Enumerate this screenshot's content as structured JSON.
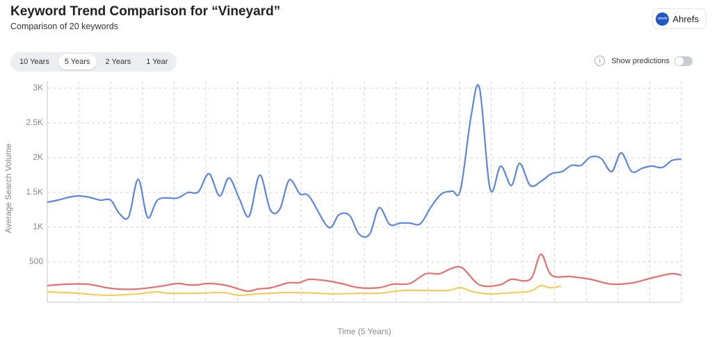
{
  "header": {
    "title": "Keyword Trend Comparison for “Vineyard”",
    "subtitle": "Comparison of 20 keywords"
  },
  "brand": {
    "logo": "ahrefs",
    "name": "Ahrefs"
  },
  "tabs": [
    "10 Years",
    "5 Years",
    "2 Years",
    "1 Year"
  ],
  "active_tab": 1,
  "predictions": {
    "label": "Show predictions",
    "icon": "i",
    "on": false
  },
  "chart_data": {
    "type": "line",
    "x_label": "Time (5 Years)",
    "y_label": "Average Search Volume",
    "xlim": [
      0,
      60
    ],
    "xticks": [
      0,
      3,
      6,
      9,
      12,
      15,
      18,
      21,
      24,
      27,
      30,
      33,
      36,
      39,
      42,
      45,
      48,
      51,
      54,
      57,
      60
    ],
    "ylim": [
      -80,
      3100
    ],
    "yticks": [
      500,
      {
        "value": 1000,
        "label": "1K"
      },
      {
        "value": 1500,
        "label": "1.5K"
      },
      {
        "value": 2000,
        "label": "2K"
      },
      {
        "value": 2500,
        "label": "2.5K"
      },
      {
        "value": 3000,
        "label": "3K"
      }
    ],
    "grid": true,
    "series": [
      {
        "color": "#5b86e0",
        "x": [
          0,
          1.0,
          2.0,
          3.0,
          4.0,
          5.0,
          6.0,
          6.8,
          7.7,
          8.6,
          9.5,
          10.5,
          12.3,
          13.3,
          14.3,
          15.3,
          16.3,
          17.2,
          18.2,
          19.1,
          20.1,
          21.1,
          22.0,
          22.9,
          23.9,
          24.8,
          26.6,
          27.6,
          28.6,
          29.5,
          30.5,
          31.4,
          32.4,
          33.4,
          34.3,
          35.3,
          36.3,
          37.3,
          38.3,
          39.1,
          40.1,
          40.9,
          41.9,
          42.9,
          43.9,
          44.7,
          45.7,
          46.8,
          47.7,
          48.7,
          49.6,
          50.5,
          51.4,
          52.4,
          53.4,
          54.3,
          55.3,
          56.3,
          57.2,
          58.2,
          59.1,
          60
        ],
        "values": [
          1360,
          1390,
          1430,
          1450,
          1430,
          1390,
          1390,
          1200,
          1150,
          1690,
          1140,
          1400,
          1420,
          1500,
          1510,
          1770,
          1450,
          1710,
          1400,
          1160,
          1750,
          1250,
          1260,
          1680,
          1480,
          1440,
          1000,
          1180,
          1170,
          900,
          900,
          1280,
          1040,
          1060,
          1060,
          1050,
          1290,
          1480,
          1520,
          1540,
          2600,
          3000,
          1550,
          1880,
          1600,
          1920,
          1600,
          1670,
          1770,
          1800,
          1890,
          1890,
          2010,
          1990,
          1800,
          2070,
          1800,
          1850,
          1880,
          1860,
          1960,
          1980
        ]
      },
      {
        "color": "#e86f6f",
        "x": [
          0,
          1.8,
          3.8,
          5.6,
          6.7,
          8.5,
          10.7,
          12.3,
          13.3,
          14.2,
          15.3,
          17.0,
          18.9,
          19.9,
          21.2,
          22.8,
          23.8,
          24.8,
          26.4,
          27.8,
          29.5,
          31.4,
          32.7,
          34.3,
          35.8,
          37.1,
          38.3,
          39.3,
          40.9,
          42.8,
          43.9,
          45.7,
          46.7,
          47.7,
          49.5,
          51.4,
          53.4,
          55.4,
          57.2,
          59.0,
          60
        ],
        "values": [
          160,
          180,
          180,
          130,
          110,
          110,
          150,
          190,
          170,
          170,
          190,
          160,
          80,
          110,
          130,
          200,
          200,
          250,
          230,
          190,
          130,
          130,
          180,
          190,
          330,
          330,
          410,
          410,
          170,
          170,
          250,
          250,
          610,
          310,
          290,
          250,
          180,
          200,
          270,
          330,
          310
        ]
      },
      {
        "color": "#f5cd5a",
        "x": [
          0,
          2.8,
          5.6,
          8.5,
          10.3,
          11.4,
          14.2,
          16.6,
          18.2,
          19.9,
          22.8,
          25.7,
          27.1,
          29.7,
          31.4,
          33.7,
          35.7,
          37.9,
          39.1,
          40.3,
          41.9,
          44.2,
          45.7,
          46.7,
          47.5,
          48.6
        ],
        "values": [
          70,
          50,
          20,
          40,
          70,
          50,
          50,
          60,
          20,
          40,
          60,
          50,
          40,
          50,
          50,
          90,
          90,
          90,
          130,
          70,
          40,
          60,
          80,
          160,
          130,
          150
        ]
      }
    ]
  }
}
